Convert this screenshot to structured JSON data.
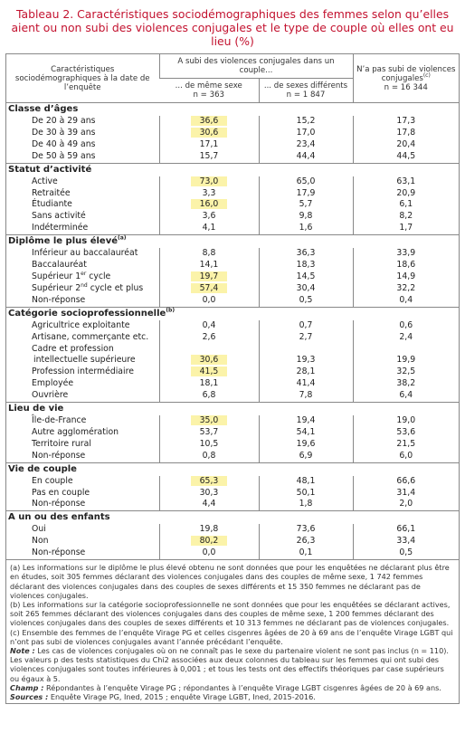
{
  "title": "Tableau 2. Caractéristiques sociodémographiques des femmes selon qu’elles aient ou non subi des violences conjugales et le type de couple où elles ont eu lieu (%)",
  "header": {
    "characteristic": "Caractéristiques sociodémographiques à la date de l’enquête",
    "group": "A subi des violences conjugales dans un couple...",
    "columns": [
      {
        "label": "... de même sexe",
        "n": "n = 363"
      },
      {
        "label": "... de sexes différents",
        "n": "n = 1 847"
      },
      {
        "label": "N’a pas subi de violences conjugales",
        "sup": "(c)",
        "n": "n = 16 344"
      }
    ]
  },
  "sections": [
    {
      "title": [
        "Classe d’âges"
      ],
      "rows": [
        {
          "label": [
            "De 20 à 29 ans"
          ],
          "values": [
            "36,6",
            "15,2",
            "17,3"
          ],
          "highlight": true
        },
        {
          "label": [
            "De 30 à 39 ans"
          ],
          "values": [
            "30,6",
            "17,0",
            "17,8"
          ],
          "highlight": true
        },
        {
          "label": [
            "De 40 à 49 ans"
          ],
          "values": [
            "17,1",
            "23,4",
            "20,4"
          ]
        },
        {
          "label": [
            "De 50 à 59 ans"
          ],
          "values": [
            "15,7",
            "44,4",
            "44,5"
          ]
        }
      ]
    },
    {
      "title": [
        "Statut d’activité"
      ],
      "rows": [
        {
          "label": [
            "Active"
          ],
          "values": [
            "73,0",
            "65,0",
            "63,1"
          ],
          "highlight": true
        },
        {
          "label": [
            "Retraitée"
          ],
          "values": [
            "3,3",
            "17,9",
            "20,9"
          ]
        },
        {
          "label": [
            "Étudiante"
          ],
          "values": [
            "16,0",
            "5,7",
            "6,1"
          ],
          "highlight": true
        },
        {
          "label": [
            "Sans activité"
          ],
          "values": [
            "3,6",
            "9,8",
            "8,2"
          ]
        },
        {
          "label": [
            "Indéterminée"
          ],
          "values": [
            "4,1",
            "1,6",
            "1,7"
          ]
        }
      ]
    },
    {
      "title": [
        "Diplôme le plus élevé",
        "(a)"
      ],
      "rows": [
        {
          "label": [
            "Inférieur au baccalauréat"
          ],
          "values": [
            "8,8",
            "36,3",
            "33,9"
          ]
        },
        {
          "label": [
            "Baccalauréat"
          ],
          "values": [
            "14,1",
            "18,3",
            "18,6"
          ]
        },
        {
          "label": [
            "Supérieur 1",
            "er",
            " cycle"
          ],
          "values": [
            "19,7",
            "14,5",
            "14,9"
          ],
          "highlight": true
        },
        {
          "label": [
            "Supérieur 2",
            "nd",
            " cycle et plus"
          ],
          "values": [
            "57,4",
            "30,4",
            "32,2"
          ],
          "highlight": true
        },
        {
          "label": [
            "Non-réponse"
          ],
          "values": [
            "0,0",
            "0,5",
            "0,4"
          ]
        }
      ]
    },
    {
      "title": [
        "Catégorie socioprofessionnelle",
        "(b)"
      ],
      "rows": [
        {
          "label": [
            "Agricultrice exploitante"
          ],
          "values": [
            "0,4",
            "0,7",
            "0,6"
          ]
        },
        {
          "label": [
            "Artisane, commerçante etc."
          ],
          "values": [
            "2,6",
            "2,7",
            "2,4"
          ]
        },
        {
          "label": [
            "Cadre et profession intellectuelle supérieure"
          ],
          "values": [
            "30,6",
            "19,3",
            "19,9"
          ],
          "highlight": true
        },
        {
          "label": [
            "Profession intermédiaire"
          ],
          "values": [
            "41,5",
            "28,1",
            "32,5"
          ],
          "highlight": true
        },
        {
          "label": [
            "Employée"
          ],
          "values": [
            "18,1",
            "41,4",
            "38,2"
          ]
        },
        {
          "label": [
            "Ouvrière"
          ],
          "values": [
            "6,8",
            "7,8",
            "6,4"
          ]
        }
      ]
    },
    {
      "title": [
        "Lieu de vie"
      ],
      "rows": [
        {
          "label": [
            "Île-de-France"
          ],
          "values": [
            "35,0",
            "19,4",
            "19,0"
          ],
          "highlight": true
        },
        {
          "label": [
            "Autre agglomération"
          ],
          "values": [
            "53,7",
            "54,1",
            "53,6"
          ]
        },
        {
          "label": [
            "Territoire rural"
          ],
          "values": [
            "10,5",
            "19,6",
            "21,5"
          ]
        },
        {
          "label": [
            "Non-réponse"
          ],
          "values": [
            "0,8",
            "6,9",
            "6,0"
          ]
        }
      ]
    },
    {
      "title": [
        "Vie de couple"
      ],
      "rows": [
        {
          "label": [
            "En couple"
          ],
          "values": [
            "65,3",
            "48,1",
            "66,6"
          ],
          "highlight": true
        },
        {
          "label": [
            "Pas en couple"
          ],
          "values": [
            "30,3",
            "50,1",
            "31,4"
          ]
        },
        {
          "label": [
            "Non-réponse"
          ],
          "values": [
            "4,4",
            "1,8",
            "2,0"
          ]
        }
      ]
    },
    {
      "title": [
        "A un ou des enfants"
      ],
      "rows": [
        {
          "label": [
            "Oui"
          ],
          "values": [
            "19,8",
            "73,6",
            "66,1"
          ]
        },
        {
          "label": [
            "Non"
          ],
          "values": [
            "80,2",
            "26,3",
            "33,4"
          ],
          "highlight": true
        },
        {
          "label": [
            "Non-réponse"
          ],
          "values": [
            "0,0",
            "0,1",
            "0,5"
          ]
        }
      ]
    }
  ],
  "notes": [
    {
      "text": "(a) Les informations sur le diplôme le plus élevé obtenu ne sont données que pour les enquêtées ne déclarant plus être en études, soit 305 femmes déclarant des violences conjugales dans des couples de même sexe, 1 742 femmes déclarant des violences conjugales dans des couples de sexes différents et 15 350 femmes ne déclarant pas de violences conjugales."
    },
    {
      "text": "(b) Les informations sur la catégorie socioprofessionnelle ne sont données que pour les enquêtées se déclarant actives, soit 265 femmes déclarant des violences conjugales dans des couples de même sexe, 1 200 femmes déclarant des violences conjugales dans des couples de sexes différents et 10 313 femmes ne déclarant pas de violences conjugales."
    },
    {
      "text": "(c) Ensemble des femmes de l’enquête Virage PG et celles cisgenres âgées de 20 à 69 ans de l’enquête Virage LGBT qui n’ont pas subi de violences conjugales avant l’année précédant l’enquête."
    },
    {
      "lead": "Note :",
      "text": "Les cas de violences conjugales où on ne connaît pas le sexe du partenaire violent ne sont pas inclus (n = 110). Les valeurs p des tests statistiques du Chi2 associées aux deux colonnes du tableau sur les femmes qui ont subi des violences conjugales sont toutes inférieures à 0,001 ; et tous les tests ont des effectifs théoriques par case supérieurs ou égaux à 5."
    },
    {
      "lead": "Champ :",
      "text": "Répondantes à l’enquête Virage PG ; répondantes à l’enquête Virage LGBT cisgenres âgées de 20 à 69 ans."
    },
    {
      "lead": "Sources :",
      "text": "Enquête Virage PG, Ined, 2015 ; enquête Virage LGBT, Ined, 2015-2016."
    }
  ]
}
